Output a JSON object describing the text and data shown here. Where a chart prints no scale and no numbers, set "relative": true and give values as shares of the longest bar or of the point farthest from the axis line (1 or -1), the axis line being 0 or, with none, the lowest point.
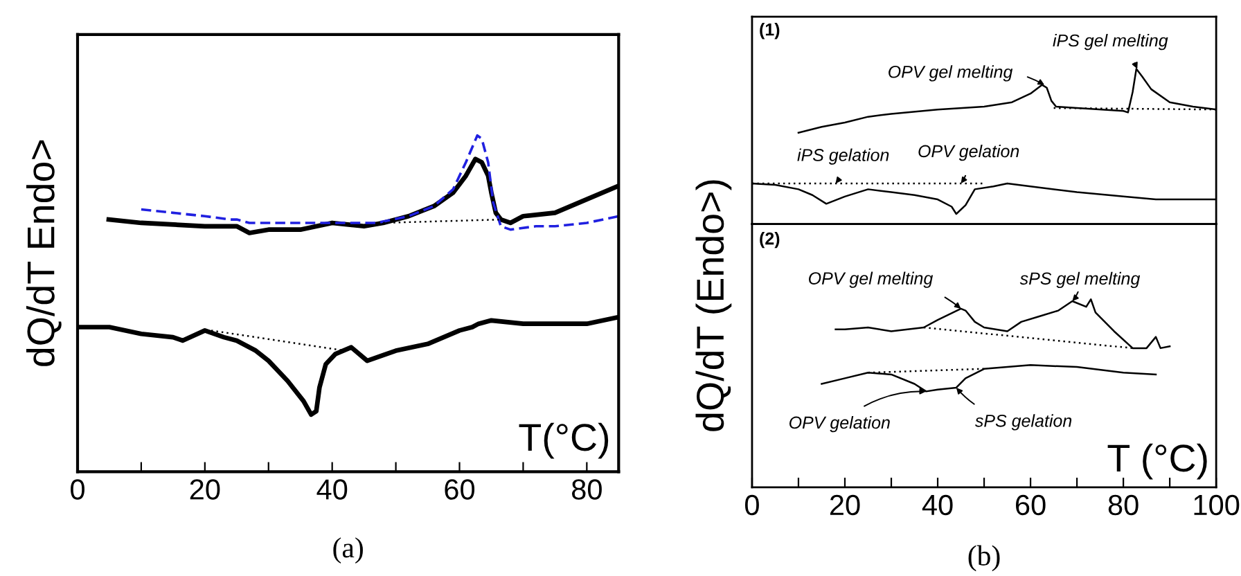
{
  "chart_data": [
    {
      "type": "line",
      "relative": true,
      "title": "(a)",
      "xlabel": "T(°C)",
      "ylabel": "dQ/dT Endo>",
      "xlim": [
        0,
        85
      ],
      "xticks": [
        0,
        {
          "value": 10,
          "label": null
        },
        20,
        {
          "value": 30,
          "label": null
        },
        40,
        {
          "value": 50,
          "label": null
        },
        60,
        {
          "value": 70,
          "label": null
        },
        80
      ],
      "series": [
        {
          "color": "#000000",
          "line_style": "solid",
          "x": [
            4.9,
            10,
            20,
            24,
            25,
            27,
            30,
            35,
            40,
            45,
            48,
            52,
            56,
            59,
            61,
            62.5,
            63.5,
            64.5,
            65,
            65.7,
            66.5,
            68,
            70,
            75,
            80,
            85
          ],
          "values": [
            0.75,
            0.74,
            0.73,
            0.73,
            0.73,
            0.71,
            0.72,
            0.72,
            0.74,
            0.73,
            0.74,
            0.76,
            0.79,
            0.83,
            0.88,
            0.93,
            0.92,
            0.88,
            0.83,
            0.77,
            0.75,
            0.74,
            0.76,
            0.77,
            0.81,
            0.85
          ]
        },
        {
          "color": "#2020e0",
          "line_style": "dashed",
          "x": [
            10,
            15,
            20,
            24,
            25,
            27,
            35,
            40,
            47,
            52,
            56,
            59,
            61,
            62.8,
            63.5,
            64.5,
            65.3,
            66.5,
            68,
            72,
            75,
            80,
            85
          ],
          "values": [
            0.78,
            0.77,
            0.76,
            0.75,
            0.75,
            0.74,
            0.74,
            0.74,
            0.74,
            0.76,
            0.79,
            0.84,
            0.92,
            1.0,
            0.99,
            0.92,
            0.8,
            0.73,
            0.72,
            0.73,
            0.73,
            0.74,
            0.76
          ]
        },
        {
          "color": "#000000",
          "line_style": "solid",
          "x": [
            0,
            3,
            5,
            10,
            15,
            16.5,
            20,
            23,
            25,
            28,
            30,
            33,
            35.5,
            36.7,
            37.5,
            38,
            39,
            40.5,
            43,
            45.5,
            50,
            55,
            60,
            62,
            63,
            65,
            70,
            80,
            85
          ],
          "values": [
            0.43,
            0.43,
            0.43,
            0.41,
            0.4,
            0.39,
            0.42,
            0.4,
            0.39,
            0.36,
            0.33,
            0.27,
            0.21,
            0.17,
            0.18,
            0.25,
            0.32,
            0.35,
            0.37,
            0.33,
            0.36,
            0.38,
            0.42,
            0.43,
            0.44,
            0.45,
            0.44,
            0.44,
            0.46
          ]
        },
        {
          "color": "#000000",
          "line_style": "dotted",
          "x": [
            48,
            66.5
          ],
          "values": [
            0.74,
            0.75
          ]
        },
        {
          "color": "#000000",
          "line_style": "dotted",
          "x": [
            21,
            42
          ],
          "values": [
            0.42,
            0.36
          ]
        }
      ]
    },
    {
      "type": "line",
      "relative": true,
      "ylabel": "dQ/dT (Endo>)",
      "xlim": [
        0,
        100
      ],
      "tick_labels": false,
      "annotations": [
        "(1)",
        {
          "text": "OPV gel melting",
          "x": 63,
          "y": 0.89
        },
        {
          "text": "iPS gel melting",
          "x": 83,
          "y": 1.0
        },
        {
          "text": "iPS gelation",
          "x": 18,
          "y": 0.21
        },
        {
          "text": "OPV gelation",
          "x": 45,
          "y": 0.21
        }
      ],
      "series": [
        {
          "color": "#000000",
          "line_style": "solid",
          "x": [
            10,
            15,
            20,
            25,
            30,
            40,
            50,
            56,
            60,
            62.5,
            63.5,
            64.5,
            65.5,
            70,
            80,
            81,
            82,
            82.8,
            84,
            86,
            90,
            95,
            100
          ],
          "values": [
            0.56,
            0.6,
            0.63,
            0.67,
            0.69,
            0.72,
            0.74,
            0.77,
            0.83,
            0.89,
            0.87,
            0.78,
            0.74,
            0.73,
            0.71,
            0.7,
            0.84,
            1.0,
            0.95,
            0.86,
            0.77,
            0.74,
            0.72
          ]
        },
        {
          "color": "#000000",
          "line_style": "solid",
          "x": [
            0,
            5,
            10,
            13,
            16,
            20,
            25,
            30,
            35,
            40,
            43,
            44,
            46,
            48,
            52,
            55,
            60,
            70,
            80,
            87,
            92,
            100
          ],
          "values": [
            0.21,
            0.2,
            0.17,
            0.13,
            0.07,
            0.12,
            0.17,
            0.15,
            0.13,
            0.1,
            0.05,
            0.0,
            0.06,
            0.17,
            0.19,
            0.21,
            0.19,
            0.15,
            0.12,
            0.1,
            0.1,
            0.1
          ]
        },
        {
          "color": "#000000",
          "line_style": "dotted",
          "x": [
            65,
            100
          ],
          "values": [
            0.73,
            0.72
          ]
        },
        {
          "color": "#000000",
          "line_style": "dotted",
          "x": [
            0,
            50
          ],
          "values": [
            0.21,
            0.21
          ]
        }
      ]
    },
    {
      "type": "line",
      "relative": true,
      "title": "(b)",
      "xlabel": "T (°C)",
      "xlim": [
        0,
        100
      ],
      "xticks": [
        0,
        {
          "value": 10,
          "label": null
        },
        20,
        {
          "value": 30,
          "label": null
        },
        40,
        {
          "value": 50,
          "label": null
        },
        60,
        {
          "value": 70,
          "label": null
        },
        80,
        {
          "value": 90,
          "label": null
        },
        100
      ],
      "annotations": [
        "(2)",
        {
          "text": "OPV gel melting",
          "x": 45,
          "y": 0.95
        },
        {
          "text": "sPS gel melting",
          "x": 69,
          "y": 0.99
        },
        {
          "text": "OPV gelation",
          "x": 37.5,
          "y": 0.51
        },
        {
          "text": "sPS gelation",
          "x": 44,
          "y": 0.53
        }
      ],
      "series": [
        {
          "color": "#000000",
          "line_style": "solid",
          "x": [
            18,
            20,
            25,
            30,
            37,
            40,
            45,
            46,
            48,
            50,
            55,
            58,
            62,
            66,
            69,
            72,
            73,
            74,
            78,
            82,
            85,
            87,
            88,
            90
          ],
          "values": [
            0.84,
            0.84,
            0.85,
            0.83,
            0.85,
            0.89,
            0.95,
            0.94,
            0.88,
            0.85,
            0.83,
            0.88,
            0.91,
            0.94,
            0.99,
            0.96,
            1.0,
            0.93,
            0.83,
            0.74,
            0.74,
            0.8,
            0.74,
            0.75
          ]
        },
        {
          "color": "#000000",
          "line_style": "solid",
          "x": [
            15,
            20,
            25,
            30,
            35,
            37.5,
            40,
            44,
            46,
            50,
            60,
            70,
            80,
            87
          ],
          "values": [
            0.55,
            0.58,
            0.61,
            0.6,
            0.55,
            0.51,
            0.52,
            0.53,
            0.58,
            0.63,
            0.65,
            0.64,
            0.61,
            0.6
          ]
        },
        {
          "color": "#000000",
          "line_style": "dotted",
          "x": [
            37,
            82
          ],
          "values": [
            0.85,
            0.74
          ]
        },
        {
          "color": "#000000",
          "line_style": "dotted",
          "x": [
            25,
            50
          ],
          "values": [
            0.61,
            0.63
          ]
        }
      ]
    }
  ]
}
